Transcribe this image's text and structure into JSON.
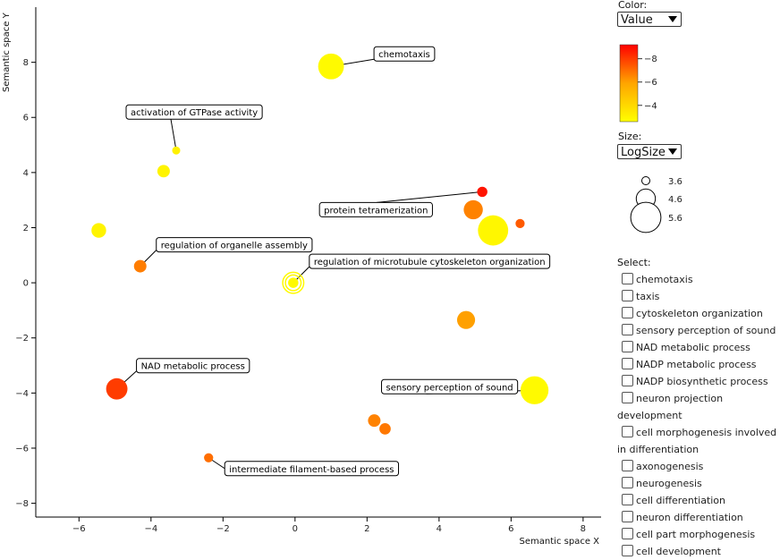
{
  "controls": {
    "color_label": "Color:",
    "color_value": "Value",
    "size_label": "Size:",
    "size_value": "LogSize",
    "select_label": "Select:",
    "select_items": [
      "chemotaxis",
      "taxis",
      "cytoskeleton organization",
      "sensory perception of sound",
      "NAD metabolic process",
      "NADP metabolic process",
      "NADP biosynthetic process",
      "neuron projection development",
      "cell morphogenesis involved in differentiation",
      "axonogenesis",
      "neurogenesis",
      "cell differentiation",
      "neuron differentiation",
      "cell part morphogenesis",
      "cell development"
    ]
  },
  "color_legend": {
    "ticks": [
      "−8",
      "−6",
      "−4"
    ],
    "tick_values": [
      -8,
      -6,
      -4
    ],
    "range": [
      -2.6,
      -9.2
    ],
    "colors": [
      "#ffff00",
      "#ffa500",
      "#ff0000"
    ]
  },
  "size_legend": {
    "ticks": [
      "3.6",
      "4.6",
      "5.6"
    ],
    "values": [
      3.6,
      4.6,
      5.6
    ]
  },
  "chart_data": {
    "type": "scatter",
    "xlabel": "Semantic space X",
    "ylabel": "Semantic space Y",
    "xlim": [
      -7.2,
      8.5
    ],
    "ylim": [
      -8.5,
      10
    ],
    "xticks": [
      -6,
      -4,
      -2,
      0,
      2,
      4,
      6,
      8
    ],
    "yticks": [
      -8,
      -6,
      -4,
      -2,
      0,
      2,
      4,
      6,
      8
    ],
    "xtick_labels": [
      "−6",
      "−4",
      "−2",
      "0",
      "2",
      "4",
      "6",
      "8"
    ],
    "ytick_labels": [
      "−8",
      "−6",
      "−4",
      "−2",
      "0",
      "2",
      "4",
      "6",
      "8"
    ],
    "points": [
      {
        "x": 1.0,
        "y": 7.85,
        "value": -2.8,
        "size": 5.2,
        "label": "chemotaxis"
      },
      {
        "x": -3.3,
        "y": 4.8,
        "value": -3.1,
        "size": 3.6,
        "label": "activation of GTPase activity"
      },
      {
        "x": -3.65,
        "y": 4.05,
        "value": -3.0,
        "size": 4.0
      },
      {
        "x": -5.45,
        "y": 1.9,
        "value": -3.0,
        "size": 4.2
      },
      {
        "x": 5.2,
        "y": 3.3,
        "value": -8.8,
        "size": 3.8,
        "label": "protein tetramerization"
      },
      {
        "x": 4.95,
        "y": 2.65,
        "value": -6.6,
        "size": 4.6
      },
      {
        "x": 5.5,
        "y": 1.9,
        "value": -2.9,
        "size": 5.6
      },
      {
        "x": 6.25,
        "y": 2.15,
        "value": -7.4,
        "size": 3.7
      },
      {
        "x": -4.3,
        "y": 0.6,
        "value": -6.7,
        "size": 4.0,
        "label": "regulation of organelle assembly"
      },
      {
        "x": -0.05,
        "y": 0.0,
        "value": -2.8,
        "size": 3.8,
        "label": "regulation of microtubule cytoskeleton organization",
        "selected": true
      },
      {
        "x": 4.75,
        "y": -1.35,
        "value": -6.0,
        "size": 4.5
      },
      {
        "x": -4.95,
        "y": -3.85,
        "value": -8.0,
        "size": 4.8,
        "label": "NAD metabolic process"
      },
      {
        "x": 6.65,
        "y": -3.9,
        "value": -2.8,
        "size": 5.4,
        "label": "sensory perception of sound"
      },
      {
        "x": 2.2,
        "y": -5.0,
        "value": -6.6,
        "size": 4.0
      },
      {
        "x": 2.5,
        "y": -5.3,
        "value": -6.8,
        "size": 3.9
      },
      {
        "x": -2.4,
        "y": -6.35,
        "value": -7.0,
        "size": 3.7,
        "label": "intermediate filament-based process"
      }
    ]
  }
}
